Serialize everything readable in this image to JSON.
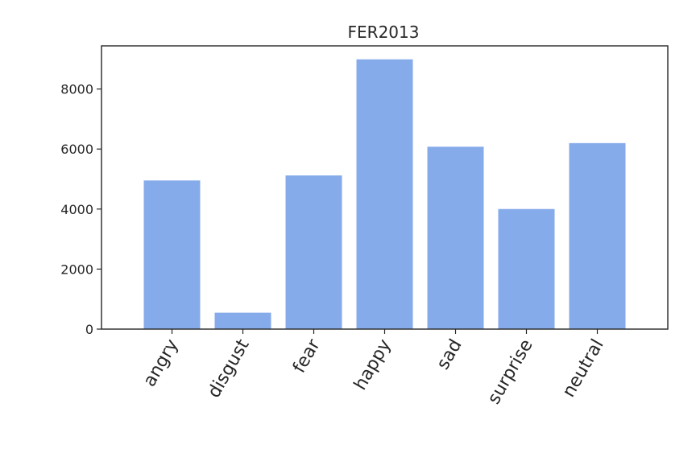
{
  "chart_data": {
    "type": "bar",
    "title": "FER2013",
    "xlabel": "",
    "ylabel": "",
    "categories": [
      "angry",
      "disgust",
      "fear",
      "happy",
      "sad",
      "surprise",
      "neutral"
    ],
    "values": [
      4953,
      547,
      5121,
      8989,
      6077,
      4002,
      6198
    ],
    "ylim": [
      0,
      9438
    ],
    "yticks": [
      0,
      2000,
      4000,
      6000,
      8000
    ],
    "bar_color": "#86abeb",
    "grid": false,
    "legend": "none"
  }
}
